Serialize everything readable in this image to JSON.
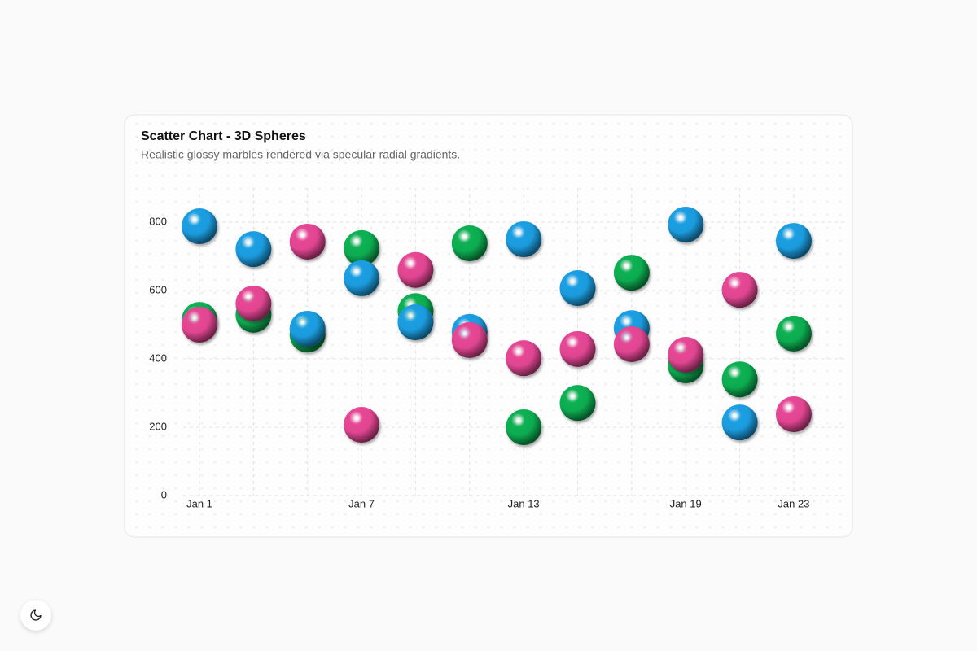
{
  "chart_data": {
    "type": "scatter",
    "title": "Scatter Chart - 3D Spheres",
    "subtitle": "Realistic glossy marbles rendered via specular radial gradients.",
    "categories": [
      "Jan 1",
      null,
      null,
      "Jan 7",
      null,
      null,
      "Jan 13",
      null,
      null,
      "Jan 19",
      null,
      "Jan 23"
    ],
    "series": [
      {
        "color": "#10b554",
        "values": [
          514,
          529,
          471,
          724,
          540,
          738,
          200,
          271,
          652,
          381,
          340,
          474
        ]
      },
      {
        "color": "#1aa3e8",
        "values": [
          788,
          721,
          488,
          636,
          507,
          479,
          750,
          607,
          490,
          793,
          214,
          745
        ]
      },
      {
        "color": "#ec4899",
        "values": [
          500,
          562,
          743,
          207,
          660,
          455,
          402,
          429,
          443,
          412,
          602,
          238
        ]
      }
    ],
    "ylim": [
      0,
      900
    ],
    "yticks": [
      0,
      200,
      400,
      600,
      800
    ],
    "grid": true
  }
}
